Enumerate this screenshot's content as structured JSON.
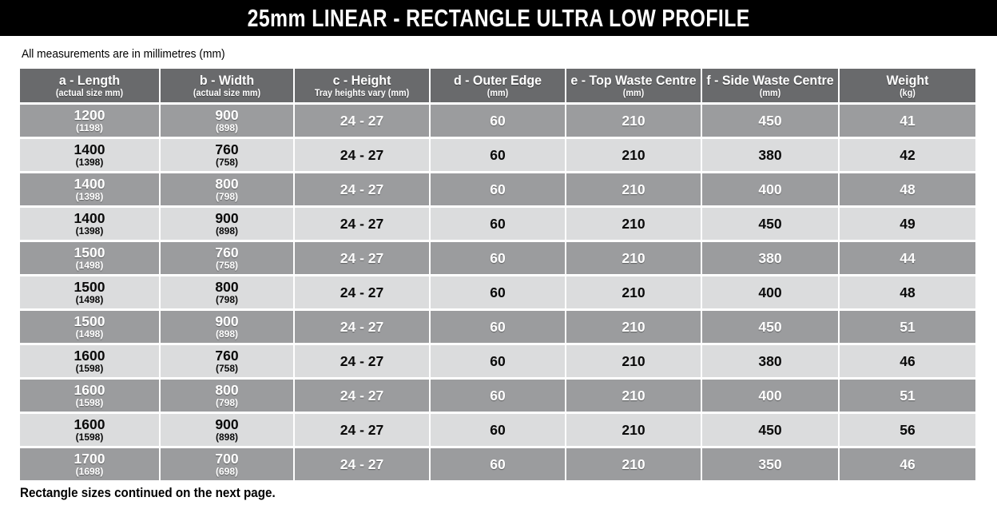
{
  "title": "25mm LINEAR - RECTANGLE ULTRA LOW PROFILE",
  "notes": {
    "top": "All measurements are in millimetres (mm)",
    "bottom": "Rectangle sizes continued on the next page."
  },
  "colors": {
    "banner_bg": "#000000",
    "banner_text": "#ffffff",
    "header_bg": "#696a6c",
    "row_dark_bg": "#9b9c9e",
    "row_light_bg": "#dbdcdd",
    "row_dark_text": "#ffffff",
    "row_light_text": "#0a0a0a"
  },
  "table": {
    "columns": [
      {
        "label": "a - Length",
        "sub": "(actual size mm)"
      },
      {
        "label": "b - Width",
        "sub": "(actual size mm)"
      },
      {
        "label": "c - Height",
        "sub": "Tray heights vary (mm)"
      },
      {
        "label": "d - Outer Edge",
        "sub": "(mm)"
      },
      {
        "label": "e - Top Waste Centre",
        "sub": "(mm)"
      },
      {
        "label": "f - Side Waste Centre",
        "sub": "(mm)"
      },
      {
        "label": "Weight",
        "sub": "(kg)"
      }
    ],
    "rows": [
      {
        "length": "1200",
        "length_actual": "(1198)",
        "width": "900",
        "width_actual": "(898)",
        "height": "24 - 27",
        "outer_edge": "60",
        "top_waste_centre": "210",
        "side_waste_centre": "450",
        "weight": "41"
      },
      {
        "length": "1400",
        "length_actual": "(1398)",
        "width": "760",
        "width_actual": "(758)",
        "height": "24 - 27",
        "outer_edge": "60",
        "top_waste_centre": "210",
        "side_waste_centre": "380",
        "weight": "42"
      },
      {
        "length": "1400",
        "length_actual": "(1398)",
        "width": "800",
        "width_actual": "(798)",
        "height": "24 - 27",
        "outer_edge": "60",
        "top_waste_centre": "210",
        "side_waste_centre": "400",
        "weight": "48"
      },
      {
        "length": "1400",
        "length_actual": "(1398)",
        "width": "900",
        "width_actual": "(898)",
        "height": "24 - 27",
        "outer_edge": "60",
        "top_waste_centre": "210",
        "side_waste_centre": "450",
        "weight": "49"
      },
      {
        "length": "1500",
        "length_actual": "(1498)",
        "width": "760",
        "width_actual": "(758)",
        "height": "24 - 27",
        "outer_edge": "60",
        "top_waste_centre": "210",
        "side_waste_centre": "380",
        "weight": "44"
      },
      {
        "length": "1500",
        "length_actual": "(1498)",
        "width": "800",
        "width_actual": "(798)",
        "height": "24 - 27",
        "outer_edge": "60",
        "top_waste_centre": "210",
        "side_waste_centre": "400",
        "weight": "48"
      },
      {
        "length": "1500",
        "length_actual": "(1498)",
        "width": "900",
        "width_actual": "(898)",
        "height": "24 - 27",
        "outer_edge": "60",
        "top_waste_centre": "210",
        "side_waste_centre": "450",
        "weight": "51"
      },
      {
        "length": "1600",
        "length_actual": "(1598)",
        "width": "760",
        "width_actual": "(758)",
        "height": "24 - 27",
        "outer_edge": "60",
        "top_waste_centre": "210",
        "side_waste_centre": "380",
        "weight": "46"
      },
      {
        "length": "1600",
        "length_actual": "(1598)",
        "width": "800",
        "width_actual": "(798)",
        "height": "24 - 27",
        "outer_edge": "60",
        "top_waste_centre": "210",
        "side_waste_centre": "400",
        "weight": "51"
      },
      {
        "length": "1600",
        "length_actual": "(1598)",
        "width": "900",
        "width_actual": "(898)",
        "height": "24 - 27",
        "outer_edge": "60",
        "top_waste_centre": "210",
        "side_waste_centre": "450",
        "weight": "56"
      },
      {
        "length": "1700",
        "length_actual": "(1698)",
        "width": "700",
        "width_actual": "(698)",
        "height": "24 - 27",
        "outer_edge": "60",
        "top_waste_centre": "210",
        "side_waste_centre": "350",
        "weight": "46"
      }
    ]
  }
}
